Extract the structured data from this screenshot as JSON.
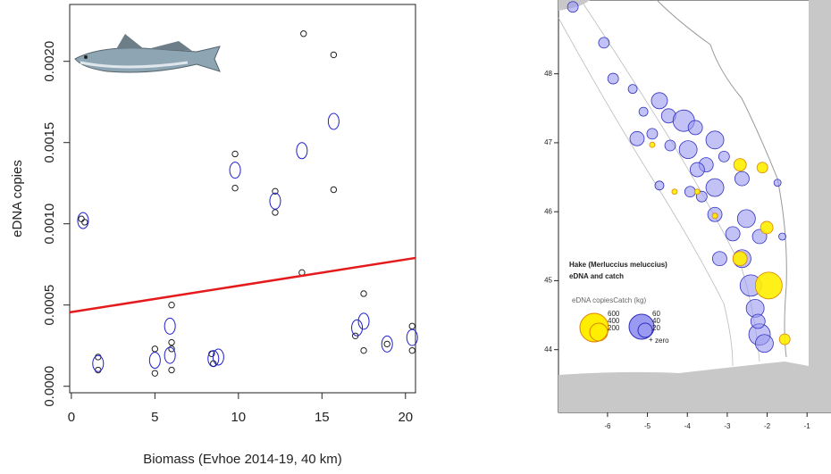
{
  "chart_data": [
    {
      "type": "scatter",
      "x_label": "Biomass (Evhoe 2014-19, 40 km)",
      "y_label": "eDNA copies",
      "xlim": [
        -0.1,
        20.6
      ],
      "ylim": [
        -4e-05,
        0.00235
      ],
      "xticks": [
        0,
        5,
        10,
        15,
        20
      ],
      "yticks": [
        {
          "value": 0,
          "label": "0.0000"
        },
        {
          "value": 0.0005,
          "label": "0.0005"
        },
        {
          "value": 0.001,
          "label": "0.0010"
        },
        {
          "value": 0.0015,
          "label": "0.0015"
        },
        {
          "value": 0.002,
          "label": "0.0020"
        }
      ],
      "series": [
        {
          "marker": "circle",
          "color": "#222222",
          "x": [
            0.6,
            0.8,
            1.6,
            1.6,
            5,
            5,
            6,
            6,
            6,
            6,
            8.4,
            8.5,
            9.8,
            9.8,
            12.2,
            12.2,
            13.9,
            13.8,
            15.7,
            15.7,
            17,
            17.5,
            17.5,
            18.9,
            20.4,
            20.4
          ],
          "values": [
            0.00103,
            0.00101,
            0.00018,
            0.0001,
            0.00023,
            8e-05,
            0.0005,
            0.00027,
            0.00023,
            0.0001,
            0.0002,
            0.00014,
            0.00143,
            0.00122,
            0.0012,
            0.00107,
            0.00217,
            0.0007,
            0.00204,
            0.00121,
            0.00031,
            0.00057,
            0.00022,
            0.00026,
            0.00037,
            0.00022
          ]
        },
        {
          "marker": "ellipse",
          "color": "#1f1fcc",
          "x": [
            0.7,
            1.6,
            5,
            5.9,
            5.9,
            8.5,
            8.8,
            9.8,
            12.2,
            13.8,
            15.7,
            17.1,
            17.5,
            18.9,
            20.4
          ],
          "values": [
            0.00102,
            0.00014,
            0.00016,
            0.00019,
            0.00037,
            0.00017,
            0.00018,
            0.00133,
            0.00114,
            0.00145,
            0.00163,
            0.00036,
            0.0004,
            0.00026,
            0.0003
          ]
        },
        {
          "marker": "line",
          "color": "#e41a1c",
          "x": [
            -0.1,
            20.6
          ],
          "values": [
            0.000455,
            0.00079
          ]
        }
      ]
    },
    {
      "type": "map",
      "title": "Hake (Merluccius meluccius)",
      "subtitle": "eDNA and catch",
      "legend_title": "eDNA copiesCatch (kg)",
      "legend_labels": [
        "600",
        "400",
        "200",
        "60",
        "40",
        "20"
      ],
      "zero_label": "zero",
      "xlim": [
        -7.23,
        -0.4
      ],
      "ylim": [
        43.09,
        49.07
      ],
      "xticks": [
        -6,
        -5,
        -4,
        -3,
        -2,
        -1
      ],
      "yticks": [
        44,
        45,
        46,
        47,
        48
      ],
      "series": [
        {
          "color": "#9a9af0",
          "x": [
            -6.87,
            -6.09,
            -5.86,
            -5.37,
            -5.26,
            -4.88,
            -4.7,
            -4.47,
            -4.09,
            -4.43,
            -3.98,
            -3.8,
            -3.31,
            -3.53,
            -3.75,
            -3.08,
            -2.63,
            -3.31,
            -3.93,
            -3.31,
            -2.52,
            -2.86,
            -2.19,
            -3.19,
            -2.63,
            -2.41,
            -2.3,
            -2.19,
            -2.07,
            -2.23,
            -1.74,
            -1.62,
            -5.1,
            -4.7,
            -3.64
          ],
          "values": [
            48.97,
            48.45,
            47.93,
            47.78,
            47.06,
            47.13,
            47.61,
            47.39,
            47.32,
            46.96,
            46.9,
            47.22,
            47.04,
            46.68,
            46.61,
            46.8,
            46.48,
            46.35,
            46.29,
            45.96,
            45.9,
            45.68,
            45.64,
            45.32,
            45.32,
            44.93,
            44.6,
            44.22,
            44.09,
            44.41,
            46.42,
            45.64,
            47.45,
            46.38,
            46.22
          ],
          "sizes": [
            6,
            6,
            6,
            5,
            8,
            6,
            9,
            8,
            12,
            6,
            10,
            8,
            10,
            8,
            8,
            6,
            8,
            10,
            6,
            8,
            10,
            8,
            8,
            8,
            10,
            12,
            10,
            12,
            10,
            8,
            4,
            4,
            5,
            5,
            6
          ]
        },
        {
          "color": "#ffee00",
          "x": [
            -2.68,
            -2.12,
            -2.01,
            -2.68,
            -1.96,
            -1.56,
            -3.75,
            -4.88,
            -4.32,
            -3.31
          ],
          "values": [
            46.68,
            46.64,
            45.77,
            45.32,
            44.93,
            44.15,
            46.29,
            46.97,
            46.29,
            45.94
          ],
          "sizes": [
            7,
            6,
            7,
            8,
            15,
            6,
            3,
            3,
            3,
            3
          ]
        }
      ]
    }
  ]
}
